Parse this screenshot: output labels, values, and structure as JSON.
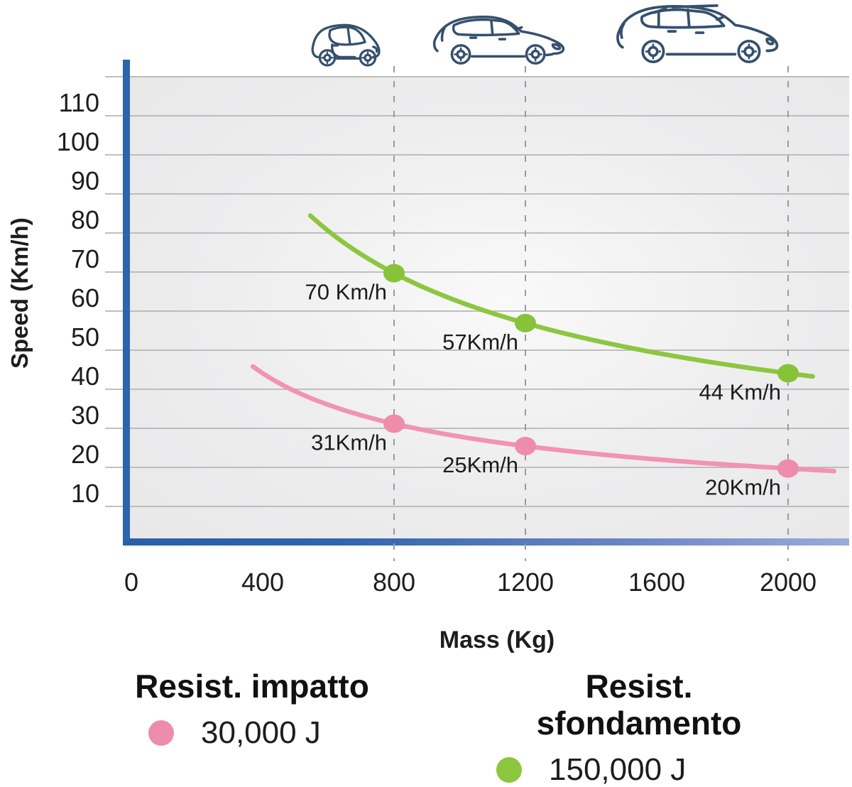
{
  "chart_data": {
    "type": "line",
    "xlabel": "Mass (Kg)",
    "ylabel": "Speed (Km/h)",
    "x_ticks": [
      0,
      400,
      800,
      1200,
      1600,
      2000
    ],
    "y_ticks": [
      10,
      20,
      30,
      40,
      50,
      60,
      70,
      80,
      90,
      100,
      110
    ],
    "y_grid": [
      10,
      20,
      30,
      40,
      50,
      60,
      70,
      80,
      90,
      100,
      110,
      120
    ],
    "xlim": [
      0,
      2190
    ],
    "ylim": [
      0,
      120
    ],
    "grid": "horizontal",
    "legend_position": "bottom",
    "dashed_guides_x": [
      800,
      1200,
      2000
    ],
    "series": [
      {
        "id": "impatto",
        "name": "Resist. impatto",
        "energy_label": "30,000 J",
        "energy_j": 30000,
        "color": "#f293b1",
        "marker_color": "#ee8cac",
        "mass_range": [
          370,
          2150
        ],
        "points": [
          {
            "mass": 800,
            "speed": 31,
            "label": "31Km/h"
          },
          {
            "mass": 1200,
            "speed": 25,
            "label": "25Km/h"
          },
          {
            "mass": 2000,
            "speed": 20,
            "label": "20Km/h"
          }
        ]
      },
      {
        "id": "sfondamento",
        "name": "Resist. sfondamento",
        "energy_label": "150,000 J",
        "energy_j": 150000,
        "color": "#8dc63f",
        "marker_color": "#86c338",
        "mass_range": [
          545,
          2085
        ],
        "points": [
          {
            "mass": 800,
            "speed": 70,
            "label": "70 Km/h"
          },
          {
            "mass": 1200,
            "speed": 57,
            "label": "57Km/h"
          },
          {
            "mass": 2000,
            "speed": 44,
            "label": "44 Km/h"
          }
        ]
      }
    ],
    "vehicle_icons": [
      {
        "name": "city-car",
        "mass": 800
      },
      {
        "name": "hatchback",
        "mass": 1200
      },
      {
        "name": "suv",
        "mass": 2000
      }
    ]
  },
  "legend": {
    "items": [
      {
        "title": "Resist. impatto",
        "value": "30,000 J",
        "color": "#ee8cac"
      },
      {
        "title": "Resist. sfondamento",
        "value": "150,000 J",
        "color": "#8dc63f"
      }
    ]
  },
  "colors": {
    "axis_blue": "#2e63ae",
    "axis_blue_light": "#9aabd9",
    "grid": "#b5b5b5",
    "dashed_guide": "#9b9b9b",
    "car_outline": "#35506d",
    "text": "#1d1d1b"
  }
}
